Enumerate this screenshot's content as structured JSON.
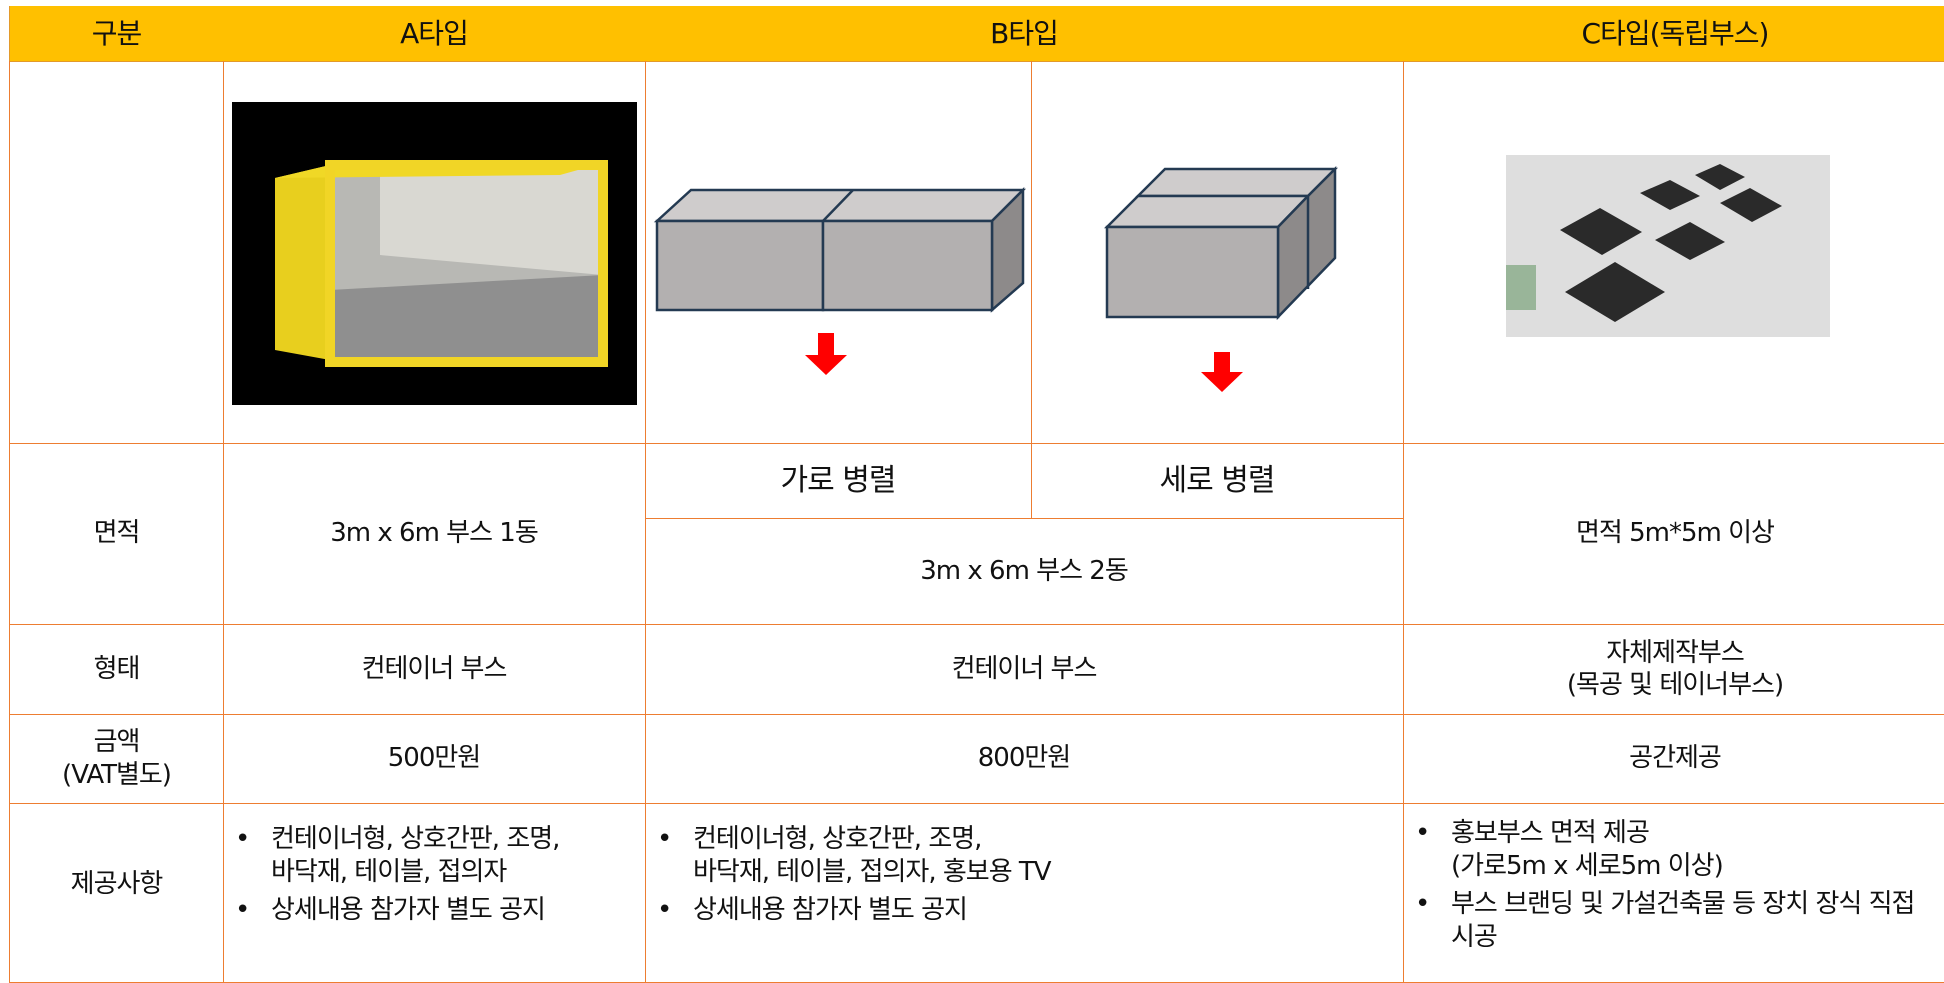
{
  "table": {
    "header": [
      "구분",
      "A타입",
      "B타입",
      "C타입(독립부스)"
    ],
    "area": {
      "label": "면적",
      "a": "3m x 6m 부스 1동",
      "b_sub": [
        "가로 병렬",
        "세로 병렬"
      ],
      "b": "3m x 6m 부스 2동",
      "c": "면적 5m*5m 이상"
    },
    "form": {
      "label": "형태",
      "a": "컨테이너 부스",
      "b": "컨테이너 부스",
      "c": "자체제작부스\n(목공 및 테이너부스)"
    },
    "price": {
      "label": "금액\n(VAT별도)",
      "a": "500만원",
      "b": "800만원",
      "c": "공간제공"
    },
    "provided": {
      "label": "제공사항",
      "a": [
        "컨테이너형, 상호간판, 조명,\n바닥재, 테이블, 접의자",
        "상세내용 참가자 별도 공지"
      ],
      "b": [
        "컨테이너형, 상호간판, 조명,\n바닥재, 테이블, 접의자, 홍보용 TV",
        "상세내용 참가자 별도 공지"
      ],
      "c": [
        "홍보부스 면적 제공\n(가로5m x 세로5m 이상)",
        "부스 브랜딩 및 가설건축물 등 장치 장식 직접 시공"
      ]
    }
  }
}
